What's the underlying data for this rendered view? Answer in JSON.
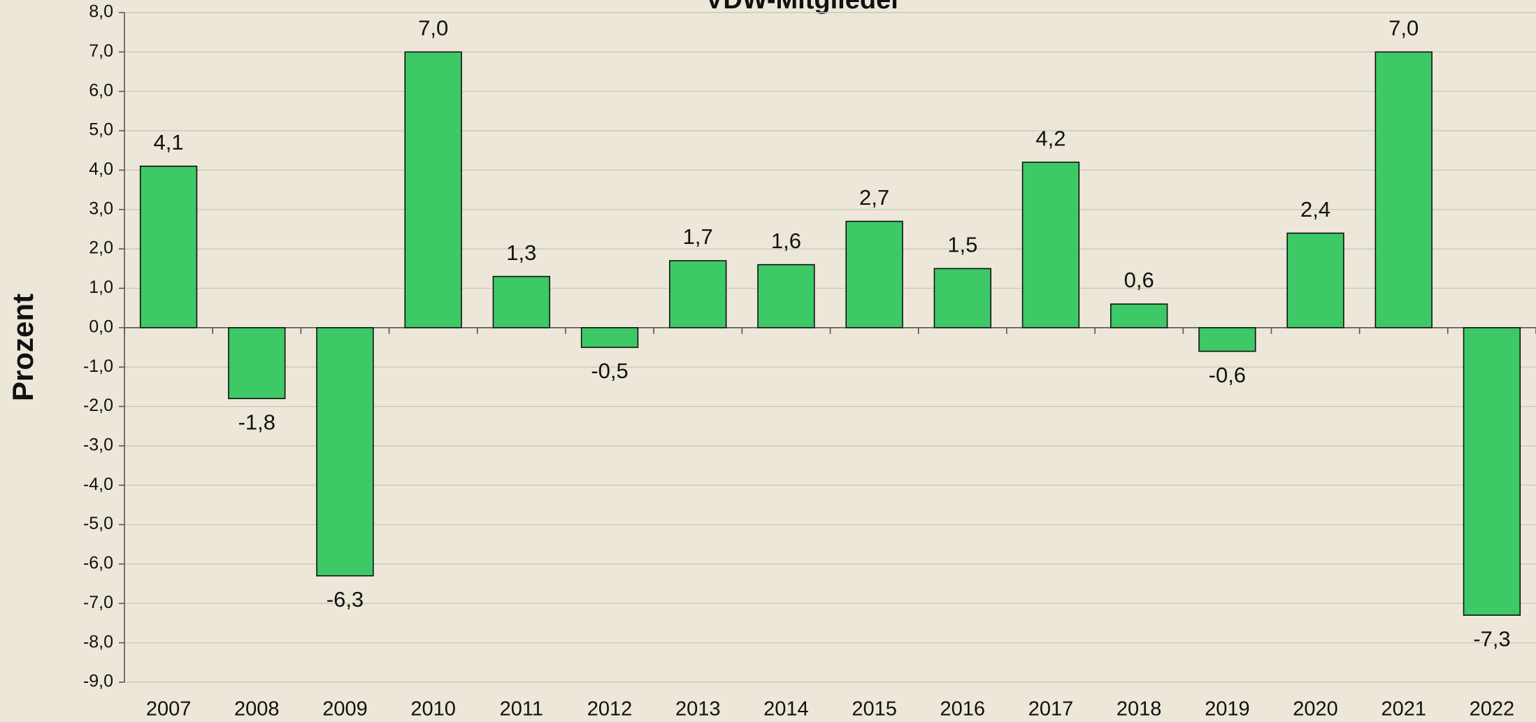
{
  "chart_data": {
    "type": "bar",
    "title": "VDW-Mitglieder",
    "y_label": "Prozent",
    "categories": [
      "2007",
      "2008",
      "2009",
      "2010",
      "2011",
      "2012",
      "2013",
      "2014",
      "2015",
      "2016",
      "2017",
      "2018",
      "2019",
      "2020",
      "2021",
      "2022"
    ],
    "values": [
      4.1,
      -1.8,
      -6.3,
      7.0,
      1.3,
      -0.5,
      1.7,
      1.6,
      2.7,
      1.5,
      4.2,
      0.6,
      -0.6,
      2.4,
      7.0,
      -7.3
    ],
    "value_labels": [
      "4,1",
      "-1,8",
      "-6,3",
      "7,0",
      "1,3",
      "-0,5",
      "1,7",
      "1,6",
      "2,7",
      "1,5",
      "4,2",
      "0,6",
      "-0,6",
      "2,4",
      "7,0",
      "-7,3"
    ],
    "color": "#3dc966",
    "ylim": [
      -9,
      8
    ],
    "yticks": [
      {
        "value": 8,
        "label": "8,0"
      },
      {
        "value": 7,
        "label": "7,0"
      },
      {
        "value": 6,
        "label": "6,0"
      },
      {
        "value": 5,
        "label": "5,0"
      },
      {
        "value": 4,
        "label": "4,0"
      },
      {
        "value": 3,
        "label": "3,0"
      },
      {
        "value": 2,
        "label": "2,0"
      },
      {
        "value": 1,
        "label": "1,0"
      },
      {
        "value": 0,
        "label": "0,0"
      },
      {
        "value": -1,
        "label": "-1,0"
      },
      {
        "value": -2,
        "label": "-2,0"
      },
      {
        "value": -3,
        "label": "-3,0"
      },
      {
        "value": -4,
        "label": "-4,0"
      },
      {
        "value": -5,
        "label": "-5,0"
      },
      {
        "value": -6,
        "label": "-6,0"
      },
      {
        "value": -7,
        "label": "-7,0"
      },
      {
        "value": -8,
        "label": "-8,0"
      },
      {
        "value": -9,
        "label": "-9,0"
      }
    ],
    "grid": true
  }
}
